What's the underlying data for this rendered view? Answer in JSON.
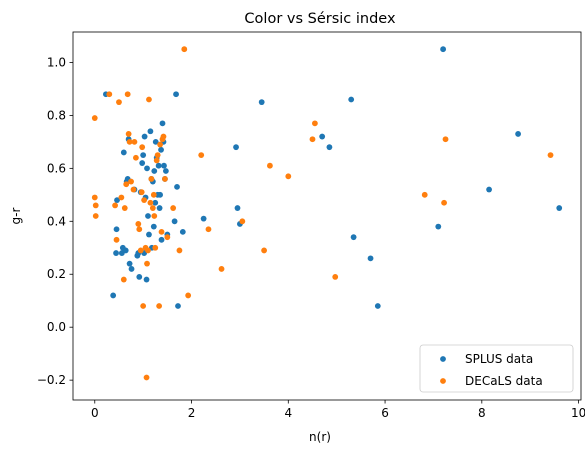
{
  "chart_data": {
    "type": "scatter",
    "title": "Color vs Sérsic index",
    "xlabel": "n(r)",
    "ylabel": "g-r",
    "xlim": [
      -0.45,
      10.05
    ],
    "ylim": [
      -0.275,
      1.115
    ],
    "xticks": [
      0,
      2,
      4,
      6,
      8,
      10
    ],
    "yticks": [
      -0.2,
      0.0,
      0.2,
      0.4,
      0.6,
      0.8,
      1.0
    ],
    "xtick_labels": [
      "0",
      "2",
      "4",
      "6",
      "8",
      "10"
    ],
    "ytick_labels": [
      "−0.2",
      "0.0",
      "0.2",
      "0.4",
      "0.6",
      "0.8",
      "1.0"
    ],
    "grid": false,
    "legend_position": "lower-right",
    "series": [
      {
        "name": "SPLUS data",
        "color": "#1f77b4",
        "points": [
          [
            0.23,
            0.88
          ],
          [
            0.38,
            0.12
          ],
          [
            0.44,
            0.28
          ],
          [
            0.45,
            0.37
          ],
          [
            0.46,
            0.48
          ],
          [
            0.56,
            0.28
          ],
          [
            0.58,
            0.3
          ],
          [
            0.6,
            0.66
          ],
          [
            0.64,
            0.29
          ],
          [
            0.66,
            0.55
          ],
          [
            0.68,
            0.56
          ],
          [
            0.7,
            0.71
          ],
          [
            0.72,
            0.24
          ],
          [
            0.76,
            0.22
          ],
          [
            0.82,
            0.52
          ],
          [
            0.88,
            0.27
          ],
          [
            0.9,
            0.28
          ],
          [
            0.92,
            0.19
          ],
          [
            0.95,
            0.51
          ],
          [
            0.98,
            0.62
          ],
          [
            1.0,
            0.65
          ],
          [
            1.02,
            0.28
          ],
          [
            1.03,
            0.72
          ],
          [
            1.05,
            0.49
          ],
          [
            1.07,
            0.18
          ],
          [
            1.08,
            0.6
          ],
          [
            1.1,
            0.42
          ],
          [
            1.12,
            0.35
          ],
          [
            1.15,
            0.74
          ],
          [
            1.17,
            0.56
          ],
          [
            1.18,
            0.3
          ],
          [
            1.2,
            0.55
          ],
          [
            1.22,
            0.38
          ],
          [
            1.23,
            0.59
          ],
          [
            1.25,
            0.47
          ],
          [
            1.26,
            0.7
          ],
          [
            1.28,
            0.64
          ],
          [
            1.3,
            0.5
          ],
          [
            1.32,
            0.61
          ],
          [
            1.34,
            0.45
          ],
          [
            1.35,
            0.5
          ],
          [
            1.37,
            0.67
          ],
          [
            1.38,
            0.33
          ],
          [
            1.4,
            0.77
          ],
          [
            1.42,
            0.7
          ],
          [
            1.43,
            0.61
          ],
          [
            1.45,
            0.56
          ],
          [
            1.47,
            0.59
          ],
          [
            1.5,
            0.35
          ],
          [
            1.65,
            0.4
          ],
          [
            1.68,
            0.88
          ],
          [
            1.7,
            0.53
          ],
          [
            1.72,
            0.08
          ],
          [
            1.82,
            0.36
          ],
          [
            2.25,
            0.41
          ],
          [
            2.92,
            0.68
          ],
          [
            2.95,
            0.45
          ],
          [
            3.0,
            0.39
          ],
          [
            3.45,
            0.85
          ],
          [
            4.7,
            0.72
          ],
          [
            4.85,
            0.68
          ],
          [
            5.3,
            0.86
          ],
          [
            5.35,
            0.34
          ],
          [
            5.7,
            0.26
          ],
          [
            5.85,
            0.08
          ],
          [
            7.1,
            0.38
          ],
          [
            7.2,
            1.05
          ],
          [
            8.15,
            0.52
          ],
          [
            8.75,
            0.73
          ],
          [
            9.6,
            0.45
          ]
        ]
      },
      {
        "name": "DECaLS data",
        "color": "#ff7f0e",
        "points": [
          [
            0.0,
            0.79
          ],
          [
            0.0,
            0.49
          ],
          [
            0.02,
            0.46
          ],
          [
            0.02,
            0.42
          ],
          [
            0.3,
            0.88
          ],
          [
            0.42,
            0.46
          ],
          [
            0.45,
            0.33
          ],
          [
            0.5,
            0.85
          ],
          [
            0.55,
            0.49
          ],
          [
            0.6,
            0.18
          ],
          [
            0.62,
            0.45
          ],
          [
            0.65,
            0.54
          ],
          [
            0.68,
            0.88
          ],
          [
            0.7,
            0.73
          ],
          [
            0.72,
            0.7
          ],
          [
            0.75,
            0.55
          ],
          [
            0.8,
            0.52
          ],
          [
            0.82,
            0.7
          ],
          [
            0.85,
            0.64
          ],
          [
            0.9,
            0.39
          ],
          [
            0.92,
            0.37
          ],
          [
            0.95,
            0.29
          ],
          [
            0.97,
            0.51
          ],
          [
            0.98,
            0.68
          ],
          [
            1.0,
            0.08
          ],
          [
            1.02,
            0.48
          ],
          [
            1.05,
            0.3
          ],
          [
            1.07,
            -0.19
          ],
          [
            1.08,
            0.24
          ],
          [
            1.1,
            0.29
          ],
          [
            1.12,
            0.86
          ],
          [
            1.15,
            0.47
          ],
          [
            1.17,
            0.56
          ],
          [
            1.2,
            0.45
          ],
          [
            1.22,
            0.5
          ],
          [
            1.23,
            0.42
          ],
          [
            1.25,
            0.3
          ],
          [
            1.28,
            0.63
          ],
          [
            1.3,
            0.65
          ],
          [
            1.33,
            0.08
          ],
          [
            1.35,
            0.69
          ],
          [
            1.38,
            0.36
          ],
          [
            1.4,
            0.71
          ],
          [
            1.42,
            0.72
          ],
          [
            1.45,
            0.56
          ],
          [
            1.5,
            0.34
          ],
          [
            1.62,
            0.45
          ],
          [
            1.75,
            0.29
          ],
          [
            1.85,
            1.05
          ],
          [
            1.93,
            0.12
          ],
          [
            2.2,
            0.65
          ],
          [
            2.35,
            0.37
          ],
          [
            2.62,
            0.22
          ],
          [
            3.05,
            0.4
          ],
          [
            3.5,
            0.29
          ],
          [
            3.62,
            0.61
          ],
          [
            4.0,
            0.57
          ],
          [
            4.5,
            0.71
          ],
          [
            4.55,
            0.77
          ],
          [
            4.97,
            0.19
          ],
          [
            6.82,
            0.5
          ],
          [
            7.22,
            0.47
          ],
          [
            7.25,
            0.71
          ],
          [
            9.42,
            0.65
          ]
        ]
      }
    ]
  }
}
